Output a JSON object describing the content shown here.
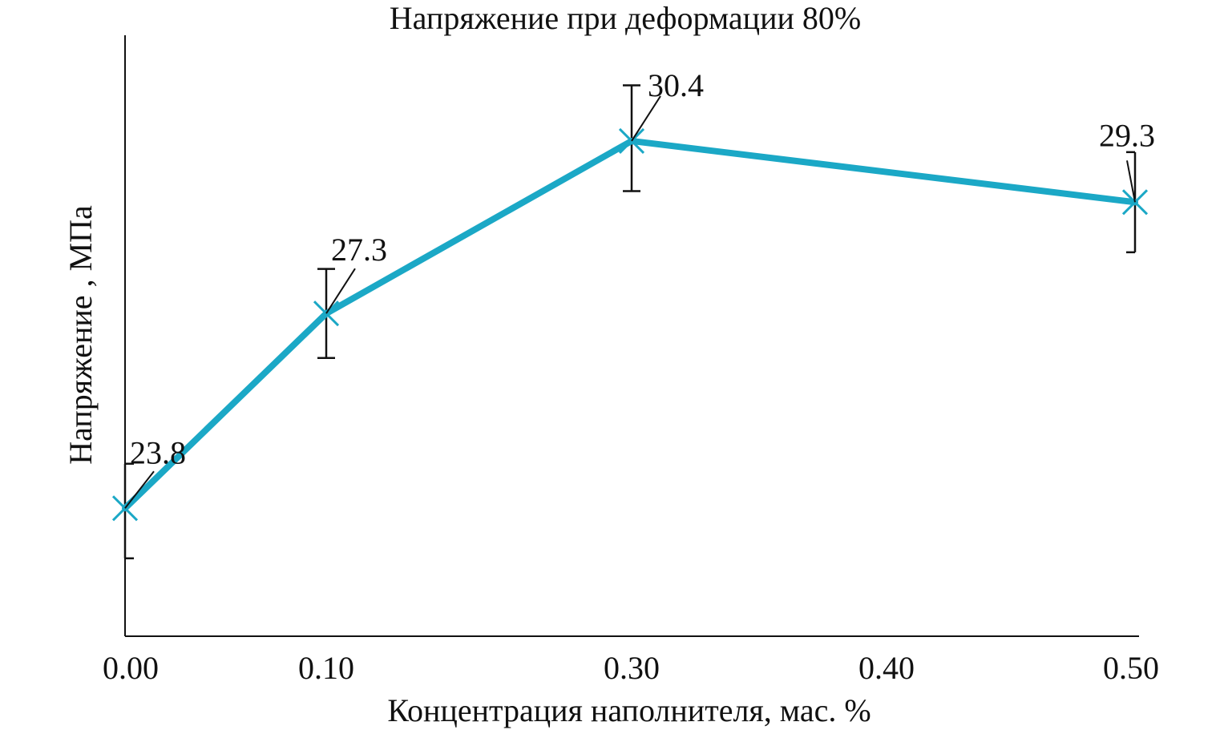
{
  "chart_data": {
    "type": "line",
    "title": "Напряжение при деформации 80%",
    "xlabel": "Концентрация наполнителя, мас. %",
    "ylabel": "Напряжение , МПа",
    "categories": [
      "0.00",
      "0.10",
      "0.30",
      "0.40",
      "0.50"
    ],
    "series": [
      {
        "x": [
          "0.00",
          "0.10",
          "0.30",
          "0.50"
        ],
        "values": [
          23.8,
          27.3,
          30.4,
          29.3
        ],
        "labels": [
          "23.8",
          "27.3",
          "30.4",
          "29.3"
        ],
        "error_low": [
          22.9,
          26.5,
          29.5,
          28.4
        ],
        "error_high": [
          24.6,
          28.1,
          31.4,
          30.2
        ]
      }
    ],
    "ylim": [
      21.5,
      32.3
    ],
    "grid": false,
    "line_color": "#1ba8c6",
    "marker": "x"
  }
}
